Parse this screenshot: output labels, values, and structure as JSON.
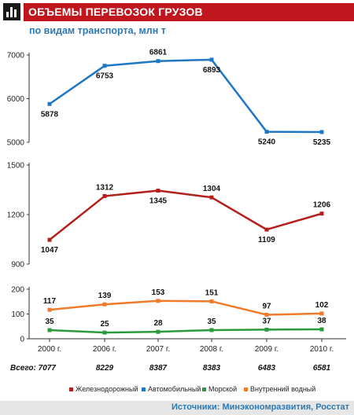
{
  "header": {
    "title": "ОБЪЕМЫ ПЕРЕВОЗОК ГРУЗОВ",
    "subtitle": "по видам транспорта, млн т",
    "logo_icon": "bar-chart-icon",
    "accent_color": "#c0161d"
  },
  "footer": {
    "source": "Источники: Минэкономразвития, Росстат"
  },
  "chart_data": {
    "type": "line",
    "categories": [
      "2000 г.",
      "2006 г.",
      "2007 г.",
      "2008 г.",
      "2009 г.",
      "2010 г."
    ],
    "totals_label": "Всего: 7077",
    "totals": [
      "8229",
      "8387",
      "8383",
      "6483",
      "6581"
    ],
    "grid": false,
    "legend_position": "bottom",
    "panels": [
      {
        "ylim": [
          5000,
          7000
        ],
        "ticks": [
          "5000",
          "6000",
          "7000"
        ],
        "series": [
          {
            "name": "Автомобильный",
            "color": "#1f77c4",
            "values": [
              5878,
              6753,
              6861,
              6893,
              5240,
              5235
            ],
            "labels": [
              "5878",
              "6753",
              "6861",
              "6893",
              "5240",
              "5235"
            ]
          }
        ]
      },
      {
        "ylim": [
          900,
          1500
        ],
        "ticks": [
          "900",
          "1200",
          "1500"
        ],
        "series": [
          {
            "name": "Железнодорожный",
            "color": "#b5201c",
            "values": [
              1047,
              1312,
              1345,
              1304,
              1109,
              1206
            ],
            "labels": [
              "1047",
              "1312",
              "1345",
              "1304",
              "1109",
              "1206"
            ]
          }
        ]
      },
      {
        "ylim": [
          0,
          200
        ],
        "ticks": [
          "0",
          "100",
          "200"
        ],
        "series": [
          {
            "name": "Внутренний водный",
            "color": "#f07a2a",
            "values": [
              117,
              139,
              153,
              151,
              97,
              102
            ],
            "labels": [
              "117",
              "139",
              "153",
              "151",
              "97",
              "102"
            ]
          },
          {
            "name": "Морской",
            "color": "#2a9a3c",
            "values": [
              35,
              25,
              28,
              35,
              37,
              38
            ],
            "labels": [
              "35",
              "25",
              "28",
              "35",
              "37",
              "38"
            ]
          }
        ]
      }
    ],
    "legend": [
      {
        "name": "Железнодорожный",
        "color": "#b5201c"
      },
      {
        "name": "Автомобильный",
        "color": "#1f77c4"
      },
      {
        "name": "Морской",
        "color": "#2a9a3c"
      },
      {
        "name": "Внутренний водный",
        "color": "#f07a2a"
      }
    ]
  }
}
